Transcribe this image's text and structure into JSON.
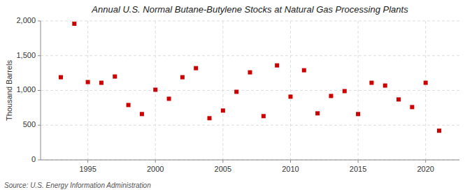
{
  "chart_data": {
    "type": "scatter",
    "title": "Annual U.S. Normal Butane-Butylene Stocks at Natural Gas Processing Plants",
    "y_label": "Thousand Barrels",
    "annotations": [
      "Source: U.S. Energy Information Administration"
    ],
    "x": [
      1993,
      1994,
      1995,
      1996,
      1997,
      1998,
      1999,
      2000,
      2001,
      2002,
      2003,
      2004,
      2005,
      2006,
      2007,
      2008,
      2009,
      2010,
      2011,
      2012,
      2013,
      2014,
      2015,
      2016,
      2017,
      2018,
      2019,
      2020,
      2021
    ],
    "values": [
      1190,
      1960,
      1120,
      1110,
      1200,
      790,
      660,
      1010,
      880,
      1190,
      1320,
      600,
      710,
      980,
      1260,
      630,
      1360,
      910,
      1290,
      670,
      920,
      990,
      660,
      1110,
      1070,
      870,
      760,
      1110,
      420
    ],
    "color": "#cc0000",
    "marker": "square",
    "xlim": [
      1991.5,
      2022.5
    ],
    "xticks": [
      1995,
      2000,
      2005,
      2010,
      2015,
      2020
    ],
    "ylim": [
      0,
      2000
    ],
    "yticks": [
      0,
      500,
      {
        "value": 1000,
        "label": "1,000"
      },
      {
        "value": 1500,
        "label": "1,500"
      },
      {
        "value": 2000,
        "label": "2,000"
      }
    ],
    "grid": true
  }
}
